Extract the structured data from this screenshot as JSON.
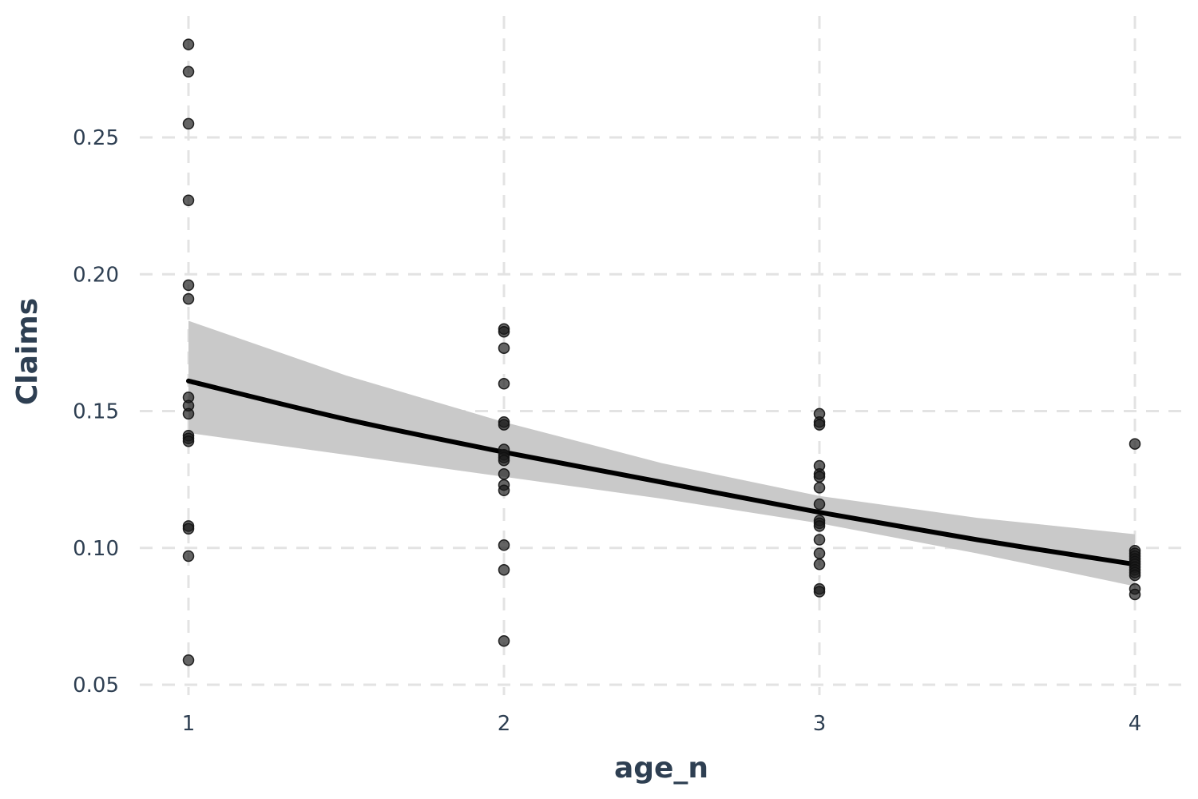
{
  "chart_data": {
    "type": "scatter",
    "xlabel": "age_n",
    "ylabel": "Claims",
    "xlim": [
      0.85,
      4.15
    ],
    "ylim": [
      0.043,
      0.292
    ],
    "x_ticks": [
      1,
      2,
      3,
      4
    ],
    "x_tick_labels": [
      "1",
      "2",
      "3",
      "4"
    ],
    "y_ticks": [
      0.05,
      0.1,
      0.15,
      0.2,
      0.25
    ],
    "y_tick_labels": [
      "0.05",
      "0.10",
      "0.15",
      "0.20",
      "0.25"
    ],
    "grid": true,
    "legend": "none",
    "colors": {
      "points": "#1a1a1a",
      "fit_line": "#000000",
      "confidence_band": "#c9c9c9",
      "grid": "#e3e3e3",
      "text": "#2e3f52"
    },
    "points": [
      {
        "x": 1,
        "y": 0.284
      },
      {
        "x": 1,
        "y": 0.274
      },
      {
        "x": 1,
        "y": 0.255
      },
      {
        "x": 1,
        "y": 0.227
      },
      {
        "x": 1,
        "y": 0.196
      },
      {
        "x": 1,
        "y": 0.191
      },
      {
        "x": 1,
        "y": 0.155
      },
      {
        "x": 1,
        "y": 0.152
      },
      {
        "x": 1,
        "y": 0.149
      },
      {
        "x": 1,
        "y": 0.141
      },
      {
        "x": 1,
        "y": 0.14
      },
      {
        "x": 1,
        "y": 0.139
      },
      {
        "x": 1,
        "y": 0.108
      },
      {
        "x": 1,
        "y": 0.107
      },
      {
        "x": 1,
        "y": 0.097
      },
      {
        "x": 1,
        "y": 0.059
      },
      {
        "x": 2,
        "y": 0.18
      },
      {
        "x": 2,
        "y": 0.179
      },
      {
        "x": 2,
        "y": 0.173
      },
      {
        "x": 2,
        "y": 0.16
      },
      {
        "x": 2,
        "y": 0.146
      },
      {
        "x": 2,
        "y": 0.145
      },
      {
        "x": 2,
        "y": 0.136
      },
      {
        "x": 2,
        "y": 0.134
      },
      {
        "x": 2,
        "y": 0.133
      },
      {
        "x": 2,
        "y": 0.132
      },
      {
        "x": 2,
        "y": 0.127
      },
      {
        "x": 2,
        "y": 0.123
      },
      {
        "x": 2,
        "y": 0.121
      },
      {
        "x": 2,
        "y": 0.101
      },
      {
        "x": 2,
        "y": 0.092
      },
      {
        "x": 2,
        "y": 0.066
      },
      {
        "x": 3,
        "y": 0.149
      },
      {
        "x": 3,
        "y": 0.146
      },
      {
        "x": 3,
        "y": 0.145
      },
      {
        "x": 3,
        "y": 0.13
      },
      {
        "x": 3,
        "y": 0.127
      },
      {
        "x": 3,
        "y": 0.126
      },
      {
        "x": 3,
        "y": 0.122
      },
      {
        "x": 3,
        "y": 0.116
      },
      {
        "x": 3,
        "y": 0.11
      },
      {
        "x": 3,
        "y": 0.109
      },
      {
        "x": 3,
        "y": 0.108
      },
      {
        "x": 3,
        "y": 0.103
      },
      {
        "x": 3,
        "y": 0.098
      },
      {
        "x": 3,
        "y": 0.094
      },
      {
        "x": 3,
        "y": 0.085
      },
      {
        "x": 3,
        "y": 0.084
      },
      {
        "x": 4,
        "y": 0.138
      },
      {
        "x": 4,
        "y": 0.099
      },
      {
        "x": 4,
        "y": 0.098
      },
      {
        "x": 4,
        "y": 0.097
      },
      {
        "x": 4,
        "y": 0.096
      },
      {
        "x": 4,
        "y": 0.095
      },
      {
        "x": 4,
        "y": 0.094
      },
      {
        "x": 4,
        "y": 0.093
      },
      {
        "x": 4,
        "y": 0.092
      },
      {
        "x": 4,
        "y": 0.091
      },
      {
        "x": 4,
        "y": 0.09
      },
      {
        "x": 4,
        "y": 0.085
      },
      {
        "x": 4,
        "y": 0.083
      }
    ],
    "fit": {
      "x": [
        1,
        1.5,
        2,
        2.5,
        3,
        3.5,
        4
      ],
      "y": [
        0.161,
        0.147,
        0.135,
        0.124,
        0.113,
        0.103,
        0.094
      ],
      "lower": [
        0.142,
        0.134,
        0.126,
        0.118,
        0.109,
        0.098,
        0.086
      ],
      "upper": [
        0.183,
        0.163,
        0.146,
        0.131,
        0.119,
        0.111,
        0.105
      ]
    }
  }
}
